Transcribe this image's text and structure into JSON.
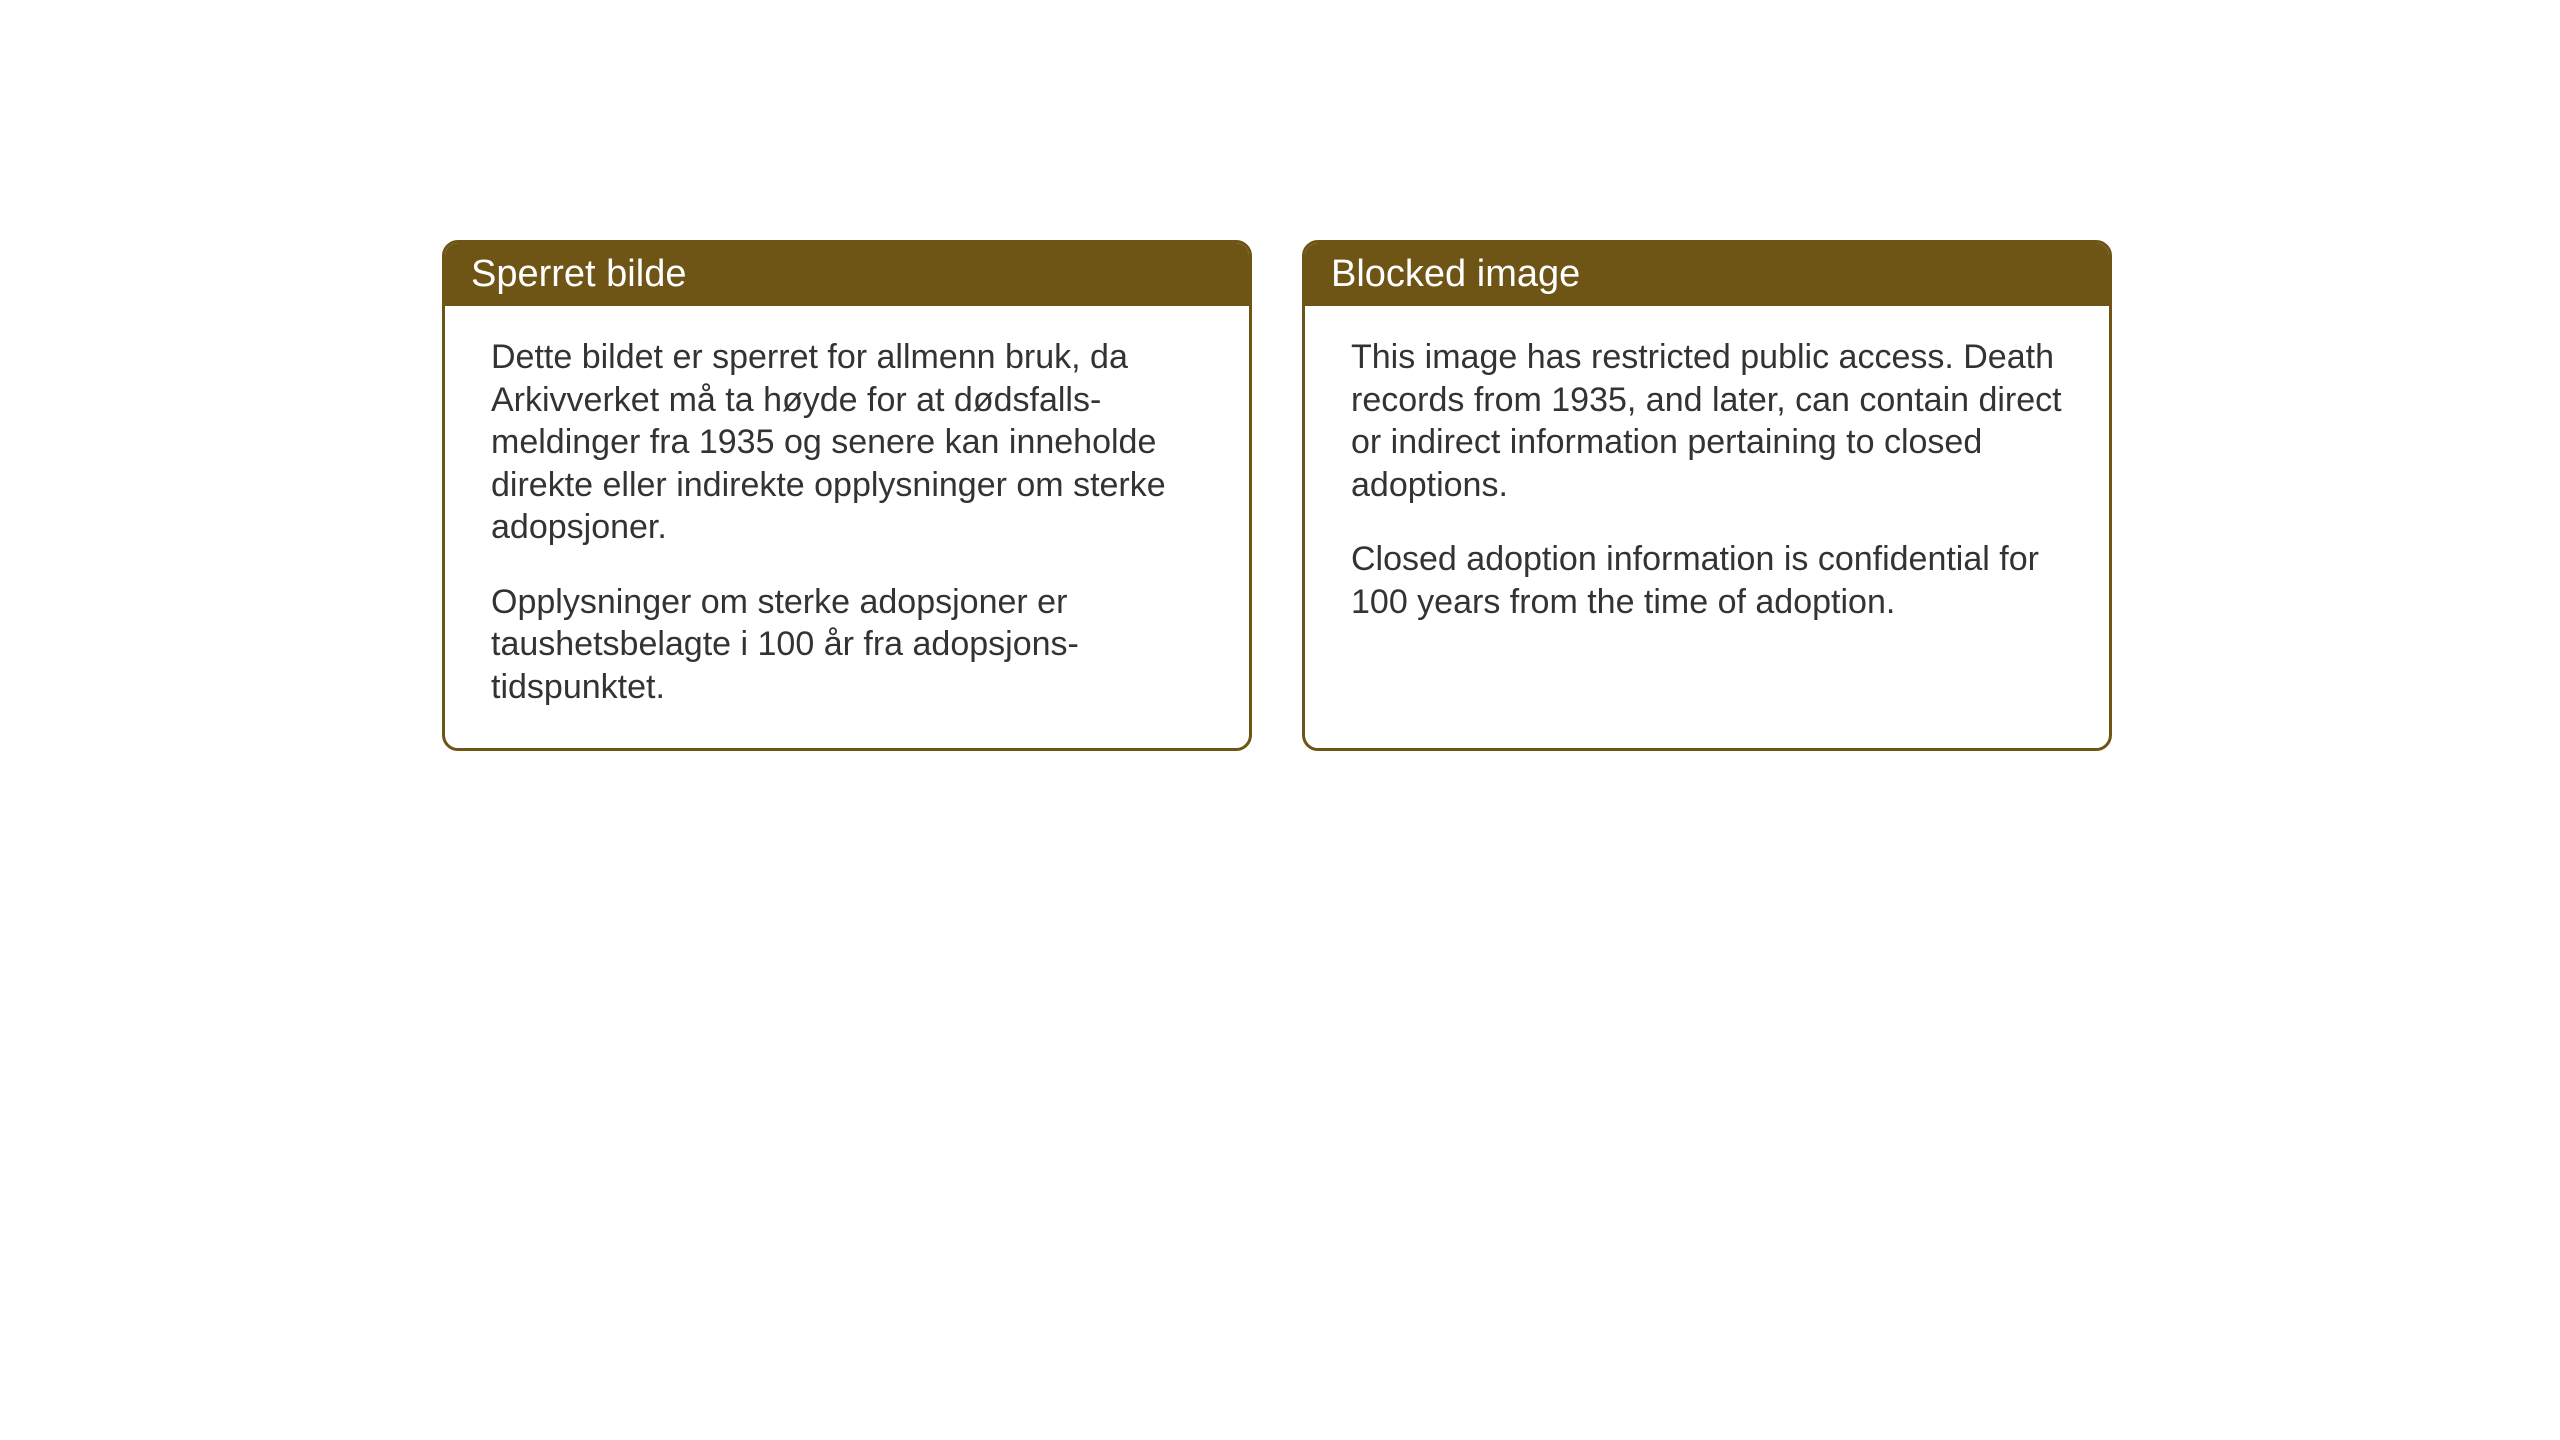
{
  "notices": {
    "norwegian": {
      "title": "Sperret bilde",
      "paragraph1": "Dette bildet er sperret for allmenn bruk, da Arkivverket må ta høyde for at dødsfalls-meldinger fra 1935 og senere kan inneholde direkte eller indirekte opplysninger om sterke adopsjoner.",
      "paragraph2": "Opplysninger om sterke adopsjoner er taushetsbelagte i 100 år fra adopsjons-tidspunktet."
    },
    "english": {
      "title": "Blocked image",
      "paragraph1": "This image has restricted public access. Death records from 1935, and later, can contain direct or indirect information pertaining to closed adoptions.",
      "paragraph2": "Closed adoption information is confidential for 100 years from the time of adoption."
    }
  },
  "styling": {
    "header_bg_color": "#6e5516",
    "header_text_color": "#ffffff",
    "border_color": "#6e5516",
    "body_text_color": "#333333",
    "background_color": "#ffffff",
    "border_radius": 16,
    "title_fontsize": 38,
    "body_fontsize": 34
  }
}
